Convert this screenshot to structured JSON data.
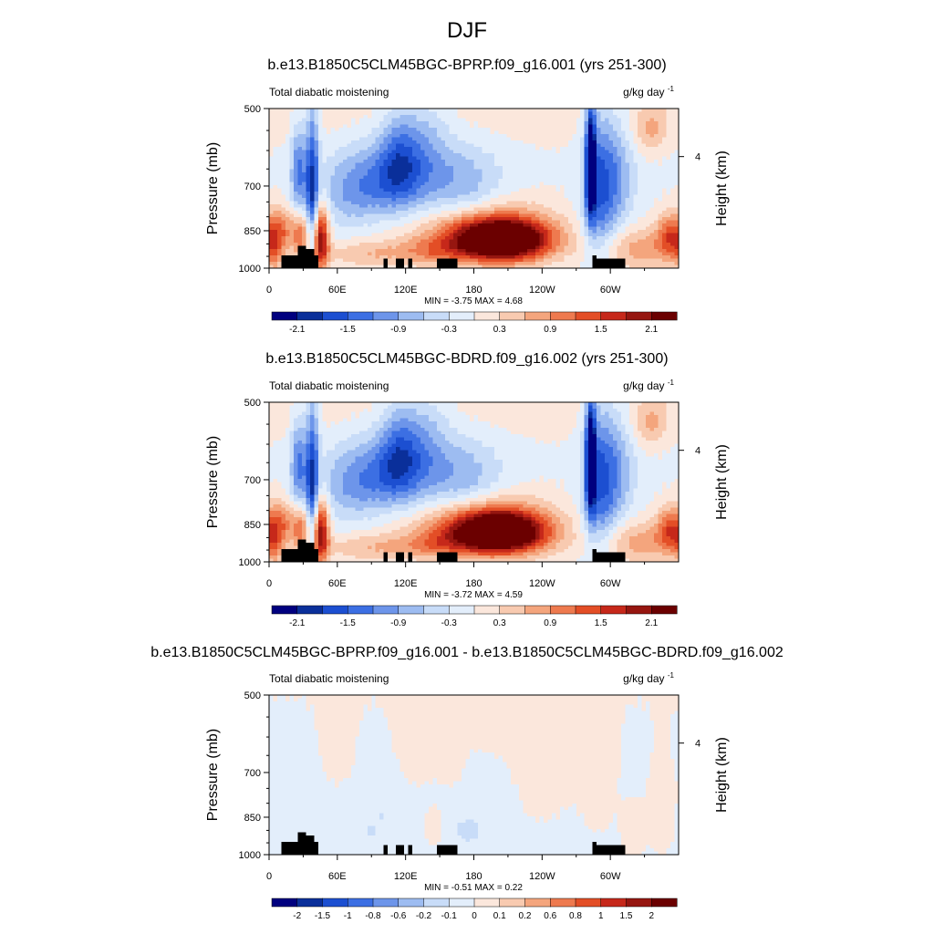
{
  "page": {
    "title": "DJF",
    "colors": {
      "scale": [
        "#00007f",
        "#0a2f9a",
        "#1c4fd1",
        "#3c6fe3",
        "#6d95ea",
        "#9dbcf1",
        "#c8dcf8",
        "#e3eefb",
        "#fbe7dc",
        "#f8cab0",
        "#f4a57d",
        "#ee7a4f",
        "#e34e26",
        "#c6281a",
        "#961610",
        "#6b0000"
      ],
      "land": "#000000"
    }
  },
  "chart_data": [
    {
      "type": "heatmap",
      "title": "b.e13.B1850C5CLM45BGC-BPRP.f09_g16.001 (yrs 251-300)",
      "left_label": "Total diabatic moistening",
      "right_label": "g/kg day",
      "right_label_sup": "-1",
      "ylabel": "Pressure (mb)",
      "y2label": "Height (km)",
      "y_ticks": [
        "500",
        "700",
        "850",
        "1000"
      ],
      "y_tick_values": [
        500,
        700,
        850,
        1000
      ],
      "y2_tick": "4",
      "x_ticks": [
        "0",
        "60E",
        "120E",
        "180",
        "120W",
        "60W"
      ],
      "x_tick_values": [
        0,
        60,
        120,
        180,
        240,
        300
      ],
      "xlim": [
        0,
        360
      ],
      "ylim": [
        1000,
        500
      ],
      "stats": "MIN =  -3.75  MAX =   4.68",
      "min": -3.75,
      "max": 4.68,
      "colorbar_labels": [
        "-2.1",
        "-1.5",
        "-0.9",
        "-0.3",
        "0.3",
        "0.9",
        "1.5",
        "2.1"
      ],
      "levels": [
        -2.4,
        -2.1,
        -1.8,
        -1.5,
        -1.2,
        -0.9,
        -0.6,
        -0.3,
        0,
        0.3,
        0.6,
        0.9,
        1.2,
        1.5,
        1.8,
        2.1,
        2.4
      ],
      "features": [
        {
          "lon": 205,
          "p": 885,
          "amp": 3.2,
          "sx": 28,
          "sp": 55
        },
        {
          "lon": 188,
          "p": 860,
          "amp": 1.0,
          "sx": 45,
          "sp": 80
        },
        {
          "lon": 325,
          "p": 920,
          "amp": 0.8,
          "sx": 25,
          "sp": 60
        },
        {
          "lon": 45,
          "p": 880,
          "amp": 2.2,
          "sx": 5,
          "sp": 90
        },
        {
          "lon": 28,
          "p": 860,
          "amp": 1.2,
          "sx": 7,
          "sp": 60
        },
        {
          "lon": 5,
          "p": 900,
          "amp": 1.0,
          "sx": 6,
          "sp": 80
        },
        {
          "lon": 90,
          "p": 940,
          "amp": 0.6,
          "sx": 30,
          "sp": 40
        },
        {
          "lon": 145,
          "p": 930,
          "amp": 0.6,
          "sx": 20,
          "sp": 40
        },
        {
          "lon": 12,
          "p": 840,
          "amp": 0.7,
          "sx": 6,
          "sp": 50
        },
        {
          "lon": 352,
          "p": 870,
          "amp": 1.2,
          "sx": 8,
          "sp": 60
        },
        {
          "lon": 335,
          "p": 550,
          "amp": 0.6,
          "sx": 10,
          "sp": 40
        },
        {
          "lon": 290,
          "p": 720,
          "amp": -1.2,
          "sx": 10,
          "sp": 160
        },
        {
          "lon": 283,
          "p": 640,
          "amp": -2.6,
          "sx": 3,
          "sp": 110
        },
        {
          "lon": 305,
          "p": 680,
          "amp": -0.8,
          "sx": 12,
          "sp": 120
        },
        {
          "lon": 38,
          "p": 730,
          "amp": -1.8,
          "sx": 4,
          "sp": 180
        },
        {
          "lon": 26,
          "p": 660,
          "amp": -1.2,
          "sx": 5,
          "sp": 90
        },
        {
          "lon": 110,
          "p": 680,
          "amp": -1.2,
          "sx": 25,
          "sp": 80
        },
        {
          "lon": 170,
          "p": 700,
          "amp": -0.8,
          "sx": 25,
          "sp": 80
        },
        {
          "lon": 70,
          "p": 720,
          "amp": -0.7,
          "sx": 20,
          "sp": 80
        },
        {
          "lon": 115,
          "p": 600,
          "amp": -0.8,
          "sx": 12,
          "sp": 90
        },
        {
          "lon": 140,
          "p": 560,
          "amp": -0.5,
          "sx": 15,
          "sp": 80
        }
      ],
      "base": {
        "value": -0.05,
        "upper_value": 0.18,
        "upper_p": 620
      }
    },
    {
      "type": "heatmap",
      "title": "b.e13.B1850C5CLM45BGC-BDRD.f09_g16.002 (yrs 251-300)",
      "left_label": "Total diabatic moistening",
      "right_label": "g/kg day",
      "right_label_sup": "-1",
      "ylabel": "Pressure (mb)",
      "y2label": "Height (km)",
      "y_ticks": [
        "500",
        "700",
        "850",
        "1000"
      ],
      "y_tick_values": [
        500,
        700,
        850,
        1000
      ],
      "y2_tick": "4",
      "x_ticks": [
        "0",
        "60E",
        "120E",
        "180",
        "120W",
        "60W"
      ],
      "x_tick_values": [
        0,
        60,
        120,
        180,
        240,
        300
      ],
      "xlim": [
        0,
        360
      ],
      "ylim": [
        1000,
        500
      ],
      "stats": "MIN =  -3.72  MAX =   4.59",
      "min": -3.72,
      "max": 4.59,
      "colorbar_labels": [
        "-2.1",
        "-1.5",
        "-0.9",
        "-0.3",
        "0.3",
        "0.9",
        "1.5",
        "2.1"
      ],
      "levels": [
        -2.4,
        -2.1,
        -1.8,
        -1.5,
        -1.2,
        -0.9,
        -0.6,
        -0.3,
        0,
        0.3,
        0.6,
        0.9,
        1.2,
        1.5,
        1.8,
        2.1,
        2.4
      ],
      "features": [
        {
          "lon": 202,
          "p": 880,
          "amp": 3.2,
          "sx": 28,
          "sp": 55
        },
        {
          "lon": 186,
          "p": 860,
          "amp": 1.0,
          "sx": 45,
          "sp": 80
        },
        {
          "lon": 325,
          "p": 920,
          "amp": 0.8,
          "sx": 25,
          "sp": 60
        },
        {
          "lon": 45,
          "p": 880,
          "amp": 2.2,
          "sx": 5,
          "sp": 90
        },
        {
          "lon": 28,
          "p": 860,
          "amp": 1.2,
          "sx": 7,
          "sp": 60
        },
        {
          "lon": 5,
          "p": 900,
          "amp": 1.0,
          "sx": 6,
          "sp": 80
        },
        {
          "lon": 90,
          "p": 940,
          "amp": 0.6,
          "sx": 30,
          "sp": 40
        },
        {
          "lon": 145,
          "p": 930,
          "amp": 0.6,
          "sx": 20,
          "sp": 40
        },
        {
          "lon": 12,
          "p": 840,
          "amp": 0.7,
          "sx": 6,
          "sp": 50
        },
        {
          "lon": 352,
          "p": 870,
          "amp": 1.2,
          "sx": 8,
          "sp": 60
        },
        {
          "lon": 335,
          "p": 550,
          "amp": 0.6,
          "sx": 10,
          "sp": 40
        },
        {
          "lon": 290,
          "p": 720,
          "amp": -1.2,
          "sx": 10,
          "sp": 160
        },
        {
          "lon": 283,
          "p": 640,
          "amp": -2.6,
          "sx": 3,
          "sp": 110
        },
        {
          "lon": 305,
          "p": 680,
          "amp": -0.8,
          "sx": 12,
          "sp": 120
        },
        {
          "lon": 38,
          "p": 730,
          "amp": -1.8,
          "sx": 4,
          "sp": 180
        },
        {
          "lon": 26,
          "p": 660,
          "amp": -1.2,
          "sx": 5,
          "sp": 90
        },
        {
          "lon": 110,
          "p": 680,
          "amp": -1.2,
          "sx": 25,
          "sp": 80
        },
        {
          "lon": 170,
          "p": 700,
          "amp": -0.8,
          "sx": 25,
          "sp": 80
        },
        {
          "lon": 70,
          "p": 720,
          "amp": -0.7,
          "sx": 20,
          "sp": 80
        },
        {
          "lon": 115,
          "p": 600,
          "amp": -0.8,
          "sx": 12,
          "sp": 90
        },
        {
          "lon": 140,
          "p": 560,
          "amp": -0.5,
          "sx": 15,
          "sp": 80
        }
      ],
      "base": {
        "value": -0.05,
        "upper_value": 0.18,
        "upper_p": 620
      }
    },
    {
      "type": "heatmap",
      "title": "b.e13.B1850C5CLM45BGC-BPRP.f09_g16.001 - b.e13.B1850C5CLM45BGC-BDRD.f09_g16.002",
      "left_label": "Total diabatic moistening",
      "right_label": "g/kg day",
      "right_label_sup": "-1",
      "ylabel": "Pressure (mb)",
      "y2label": "Height (km)",
      "y_ticks": [
        "500",
        "700",
        "850",
        "1000"
      ],
      "y_tick_values": [
        500,
        700,
        850,
        1000
      ],
      "y2_tick": "4",
      "x_ticks": [
        "0",
        "60E",
        "120E",
        "180",
        "120W",
        "60W"
      ],
      "x_tick_values": [
        0,
        60,
        120,
        180,
        240,
        300
      ],
      "xlim": [
        0,
        360
      ],
      "ylim": [
        1000,
        500
      ],
      "stats": "MIN =  -0.51  MAX =   0.22",
      "min": -0.51,
      "max": 0.22,
      "colorbar_labels": [
        "-2",
        "-1.5",
        "-1",
        "-0.8",
        "-0.6",
        "-0.2",
        "-0.1",
        "0",
        "0.1",
        "0.2",
        "0.6",
        "0.8",
        "1",
        "1.5",
        "2"
      ],
      "levels": [
        -2.5,
        -2,
        -1.5,
        -1,
        -0.8,
        -0.6,
        -0.2,
        -0.1,
        0,
        0.1,
        0.2,
        0.6,
        0.8,
        1,
        1.5,
        2,
        2.5
      ],
      "features": [
        {
          "lon": 130,
          "p": 560,
          "amp": 0.06,
          "sx": 14,
          "sp": 120
        },
        {
          "lon": 240,
          "p": 640,
          "amp": 0.06,
          "sx": 18,
          "sp": 150
        },
        {
          "lon": 160,
          "p": 600,
          "amp": 0.05,
          "sx": 10,
          "sp": 100
        },
        {
          "lon": 60,
          "p": 600,
          "amp": 0.05,
          "sx": 12,
          "sp": 100
        },
        {
          "lon": 345,
          "p": 800,
          "amp": 0.05,
          "sx": 10,
          "sp": 150
        },
        {
          "lon": 290,
          "p": 700,
          "amp": 0.05,
          "sx": 14,
          "sp": 150
        },
        {
          "lon": 145,
          "p": 890,
          "amp": 0.12,
          "sx": 4,
          "sp": 40
        },
        {
          "lon": 320,
          "p": 900,
          "amp": 0.11,
          "sx": 6,
          "sp": 60
        },
        {
          "lon": 200,
          "p": 560,
          "amp": 0.05,
          "sx": 20,
          "sp": 60
        },
        {
          "lon": 175,
          "p": 900,
          "amp": -0.13,
          "sx": 10,
          "sp": 40
        },
        {
          "lon": 90,
          "p": 900,
          "amp": -0.1,
          "sx": 5,
          "sp": 40
        },
        {
          "lon": 30,
          "p": 920,
          "amp": -0.08,
          "sx": 8,
          "sp": 40
        },
        {
          "lon": 100,
          "p": 840,
          "amp": -0.08,
          "sx": 3,
          "sp": 40
        }
      ],
      "base": {
        "value": -0.02,
        "upper_value": 0.0,
        "upper_p": 620
      }
    }
  ]
}
